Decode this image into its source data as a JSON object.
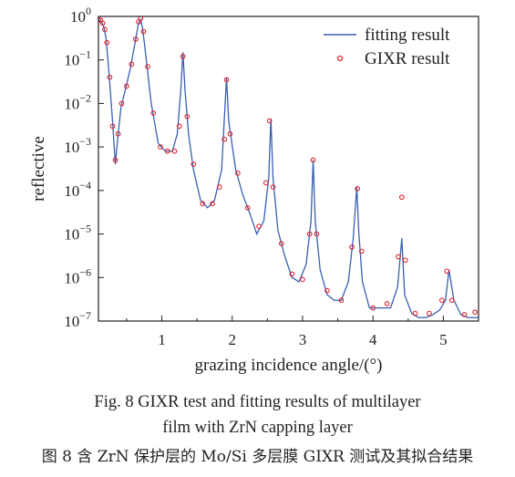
{
  "chart_data": {
    "type": "line",
    "title": "",
    "xlabel": "grazing incidence angle/(°)",
    "ylabel": "reflective",
    "xlim": [
      0.1,
      5.5
    ],
    "ylim": [
      1e-07,
      1
    ],
    "yscale": "log",
    "x_ticks": [
      1,
      2,
      3,
      4,
      5
    ],
    "x_tick_labels": [
      "1",
      "2",
      "3",
      "4",
      "5"
    ],
    "y_tick_exponents": [
      0,
      -1,
      -2,
      -3,
      -4,
      -5,
      -6,
      -7
    ],
    "y_tick_base": "10",
    "legend_position": "top-right",
    "grid": false,
    "series": [
      {
        "name": "fitting result",
        "style": "line",
        "color": "#3a5fb0",
        "x": [
          0.1,
          0.12,
          0.15,
          0.18,
          0.21,
          0.25,
          0.3,
          0.34,
          0.38,
          0.42,
          0.48,
          0.55,
          0.62,
          0.67,
          0.7,
          0.73,
          0.78,
          0.85,
          0.95,
          1.05,
          1.15,
          1.22,
          1.27,
          1.3,
          1.33,
          1.38,
          1.45,
          1.55,
          1.65,
          1.75,
          1.85,
          1.92,
          1.95,
          2.05,
          2.15,
          2.25,
          2.35,
          2.45,
          2.52,
          2.55,
          2.58,
          2.65,
          2.75,
          2.85,
          2.95,
          3.05,
          3.12,
          3.15,
          3.18,
          3.25,
          3.35,
          3.45,
          3.55,
          3.65,
          3.72,
          3.77,
          3.8,
          3.85,
          3.95,
          4.05,
          4.15,
          4.25,
          4.35,
          4.41,
          4.45,
          4.55,
          4.65,
          4.75,
          4.85,
          4.95,
          5.03,
          5.08,
          5.15,
          5.25,
          5.35,
          5.45,
          5.5
        ],
        "y": [
          0.8,
          0.8,
          0.72,
          0.55,
          0.3,
          0.05,
          0.004,
          0.0004,
          0.002,
          0.008,
          0.02,
          0.06,
          0.25,
          0.7,
          0.85,
          0.5,
          0.1,
          0.01,
          0.0012,
          0.0008,
          0.0008,
          0.002,
          0.02,
          0.15,
          0.02,
          0.002,
          0.0003,
          6e-05,
          4e-05,
          6e-05,
          0.0003,
          0.04,
          0.004,
          0.0003,
          8e-05,
          3e-05,
          1e-05,
          2e-05,
          0.0002,
          0.0045,
          0.0002,
          1.2e-05,
          3e-06,
          1e-06,
          8e-07,
          2e-06,
          2e-05,
          0.0005,
          2e-05,
          1.5e-06,
          4e-07,
          3e-07,
          3e-07,
          8e-07,
          8e-06,
          0.00012,
          1e-05,
          8e-07,
          2e-07,
          2e-07,
          2e-07,
          2e-07,
          6e-07,
          8e-06,
          4e-07,
          1.5e-07,
          1.2e-07,
          1.2e-07,
          1.4e-07,
          1.8e-07,
          3e-07,
          1.5e-06,
          3e-07,
          1.4e-07,
          1.2e-07,
          1.2e-07,
          1.2e-07
        ]
      },
      {
        "name": "GIXR result",
        "style": "markers",
        "color": "#e0242b",
        "x": [
          0.1,
          0.13,
          0.16,
          0.19,
          0.22,
          0.26,
          0.3,
          0.34,
          0.38,
          0.43,
          0.5,
          0.57,
          0.63,
          0.67,
          0.7,
          0.74,
          0.8,
          0.88,
          0.98,
          1.08,
          1.18,
          1.25,
          1.3,
          1.36,
          1.45,
          1.58,
          1.72,
          1.82,
          1.89,
          1.92,
          1.97,
          2.08,
          2.22,
          2.38,
          2.48,
          2.53,
          2.58,
          2.7,
          2.85,
          3.0,
          3.1,
          3.15,
          3.2,
          3.35,
          3.55,
          3.7,
          3.78,
          3.84,
          4.0,
          4.2,
          4.36,
          4.41,
          4.46,
          4.6,
          4.8,
          4.98,
          5.05,
          5.12,
          5.3,
          5.45
        ],
        "y": [
          0.85,
          0.82,
          0.7,
          0.5,
          0.25,
          0.04,
          0.003,
          0.0005,
          0.002,
          0.01,
          0.025,
          0.08,
          0.3,
          0.75,
          0.9,
          0.45,
          0.07,
          0.006,
          0.001,
          0.0008,
          0.0008,
          0.003,
          0.12,
          0.005,
          0.0004,
          5e-05,
          5e-05,
          0.00012,
          0.0015,
          0.035,
          0.002,
          0.00025,
          4e-05,
          1.5e-05,
          0.00015,
          0.004,
          0.00012,
          6e-06,
          1.2e-06,
          9e-07,
          1e-05,
          0.0005,
          1e-05,
          5e-07,
          3e-07,
          5e-06,
          0.00011,
          4e-06,
          2e-07,
          2.5e-07,
          3e-06,
          7e-05,
          2.5e-06,
          1.5e-07,
          1.5e-07,
          3e-07,
          1.4e-06,
          3e-07,
          1.4e-07,
          1.6e-07
        ]
      }
    ]
  },
  "caption": {
    "line1": "Fig. 8    GIXR test and fitting results of multilayer",
    "line2": "film with ZrN capping layer",
    "line3": "图 8   含 ZrN 保护层的 Mo/Si 多层膜 GIXR 测试及其拟合结果"
  }
}
